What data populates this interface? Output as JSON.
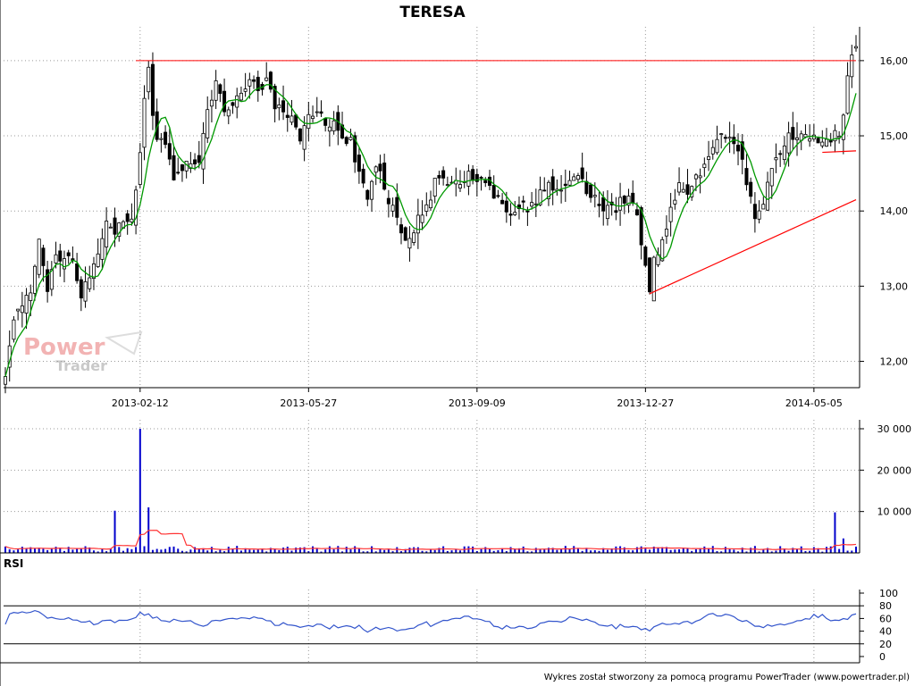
{
  "chart_data": {
    "type": "candlestick",
    "title": "TERESA",
    "main_panel": {
      "ylim": [
        11.65,
        16.45
      ],
      "y_ticks": [
        12.0,
        13.0,
        14.0,
        15.0,
        16.0
      ],
      "y_tick_labels": [
        "12,00",
        "13,00",
        "14,00",
        "15,00",
        "16,00"
      ],
      "x_tick_labels": [
        "2013-02-12",
        "2013-05-27",
        "2013-09-09",
        "2013-12-27",
        "2014-05-05"
      ],
      "x_tick_index": [
        32,
        72,
        112,
        152,
        192
      ],
      "n_bars": 203,
      "close_anchors": [
        [
          0,
          11.75
        ],
        [
          2,
          12.6
        ],
        [
          4,
          12.8
        ],
        [
          6,
          12.95
        ],
        [
          8,
          13.7
        ],
        [
          10,
          12.95
        ],
        [
          12,
          13.45
        ],
        [
          14,
          13.35
        ],
        [
          16,
          13.4
        ],
        [
          18,
          12.85
        ],
        [
          20,
          13.15
        ],
        [
          22,
          13.35
        ],
        [
          24,
          13.8
        ],
        [
          26,
          13.75
        ],
        [
          28,
          13.85
        ],
        [
          30,
          13.95
        ],
        [
          31,
          14.25
        ],
        [
          32,
          14.85
        ],
        [
          33,
          15.5
        ],
        [
          34,
          15.85
        ],
        [
          35,
          15.25
        ],
        [
          36,
          15.0
        ],
        [
          38,
          14.9
        ],
        [
          40,
          14.5
        ],
        [
          42,
          14.6
        ],
        [
          44,
          14.65
        ],
        [
          46,
          14.7
        ],
        [
          48,
          15.3
        ],
        [
          50,
          15.7
        ],
        [
          52,
          15.35
        ],
        [
          54,
          15.45
        ],
        [
          56,
          15.55
        ],
        [
          58,
          15.75
        ],
        [
          60,
          15.65
        ],
        [
          62,
          15.7
        ],
        [
          64,
          15.4
        ],
        [
          66,
          15.35
        ],
        [
          68,
          15.25
        ],
        [
          70,
          15.0
        ],
        [
          72,
          15.25
        ],
        [
          74,
          15.3
        ],
        [
          76,
          15.2
        ],
        [
          78,
          15.15
        ],
        [
          80,
          15.05
        ],
        [
          82,
          14.9
        ],
        [
          84,
          14.55
        ],
        [
          86,
          14.2
        ],
        [
          88,
          14.6
        ],
        [
          90,
          14.35
        ],
        [
          92,
          14.0
        ],
        [
          94,
          13.75
        ],
        [
          96,
          13.55
        ],
        [
          98,
          13.9
        ],
        [
          100,
          14.0
        ],
        [
          102,
          14.35
        ],
        [
          104,
          14.45
        ],
        [
          106,
          14.4
        ],
        [
          108,
          14.35
        ],
        [
          110,
          14.45
        ],
        [
          112,
          14.35
        ],
        [
          114,
          14.45
        ],
        [
          116,
          14.2
        ],
        [
          118,
          14.05
        ],
        [
          120,
          14.0
        ],
        [
          122,
          14.1
        ],
        [
          124,
          14.0
        ],
        [
          126,
          14.15
        ],
        [
          128,
          14.3
        ],
        [
          130,
          14.3
        ],
        [
          132,
          14.35
        ],
        [
          134,
          14.35
        ],
        [
          136,
          14.4
        ],
        [
          138,
          14.3
        ],
        [
          140,
          14.2
        ],
        [
          142,
          14.05
        ],
        [
          144,
          14.0
        ],
        [
          146,
          14.1
        ],
        [
          148,
          14.15
        ],
        [
          150,
          13.95
        ],
        [
          152,
          13.3
        ],
        [
          153,
          12.95
        ],
        [
          154,
          13.35
        ],
        [
          156,
          13.6
        ],
        [
          158,
          14.0
        ],
        [
          160,
          14.3
        ],
        [
          162,
          14.25
        ],
        [
          164,
          14.45
        ],
        [
          166,
          14.6
        ],
        [
          168,
          14.85
        ],
        [
          170,
          15.0
        ],
        [
          172,
          14.9
        ],
        [
          174,
          14.8
        ],
        [
          176,
          14.4
        ],
        [
          178,
          13.95
        ],
        [
          180,
          14.1
        ],
        [
          182,
          14.5
        ],
        [
          184,
          14.85
        ],
        [
          186,
          14.95
        ],
        [
          188,
          15.05
        ],
        [
          190,
          15.0
        ],
        [
          192,
          15.0
        ],
        [
          194,
          14.95
        ],
        [
          196,
          15.0
        ],
        [
          198,
          15.05
        ],
        [
          199,
          15.35
        ],
        [
          200,
          15.85
        ],
        [
          201,
          16.05
        ],
        [
          202,
          16.1
        ]
      ],
      "moving_average_color": "#009900",
      "resistance_line": {
        "value": 16.0,
        "color": "#ff0000"
      },
      "trendline_support": {
        "from": [
          153,
          12.9
        ],
        "to": [
          202,
          14.15
        ],
        "color": "#ff0000"
      },
      "trendline_short": {
        "from": [
          194,
          14.78
        ],
        "to": [
          202,
          14.8
        ],
        "color": "#ff0000"
      },
      "grid": true
    },
    "volume_panel": {
      "ylim": [
        0,
        30000
      ],
      "y_ticks": [
        10000,
        20000,
        30000
      ],
      "y_tick_labels": [
        "10 000",
        "20 000",
        "30 000"
      ],
      "spikes": [
        [
          26,
          10200
        ],
        [
          32,
          30000
        ],
        [
          34,
          11000
        ],
        [
          197,
          9800
        ],
        [
          199,
          3500
        ]
      ],
      "bar_color": "#0000cc",
      "average_line_color": "#ff3333"
    },
    "rsi_panel": {
      "label": "RSI",
      "ylim": [
        0,
        100
      ],
      "y_ticks": [
        0,
        20,
        40,
        60,
        80,
        100
      ],
      "y_tick_labels": [
        "0",
        "20",
        "40",
        "60",
        "80",
        "100"
      ],
      "levels": [
        20,
        80
      ],
      "line_color": "#3355cc"
    }
  },
  "footer_text": "Wykres został stworzony za pomocą programu PowerTrader (www.powertrader.pl)",
  "watermark": {
    "brand_first": "Power",
    "brand_second": "Trader"
  }
}
